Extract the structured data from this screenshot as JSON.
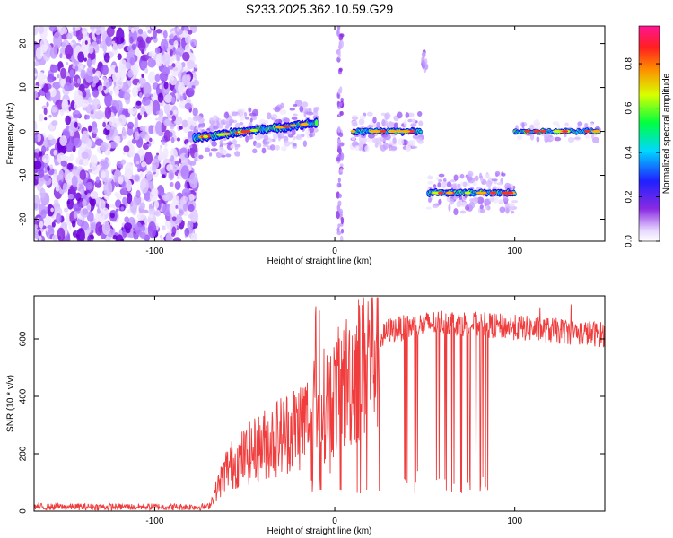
{
  "title": "S233.2025.362.10.59.G29",
  "chart_data": [
    {
      "type": "heatmap",
      "name": "spectrogram",
      "xlabel": "Height of straight line (km)",
      "ylabel": "Frequency (Hz)",
      "xlim": [
        -167,
        150
      ],
      "ylim": [
        -25,
        24
      ],
      "xticks": [
        -100,
        0,
        100
      ],
      "yticks": [
        -20,
        -10,
        0,
        10,
        20
      ],
      "colorbar": {
        "label": "Normalized spectral amplitude",
        "range": [
          0.0,
          0.97
        ],
        "ticks": [
          0.0,
          0.2,
          0.4,
          0.6,
          0.8
        ]
      },
      "features": [
        {
          "name": "noise-region",
          "x": [
            -167,
            -77
          ],
          "y": [
            -25,
            24
          ]
        },
        {
          "name": "tone-rising",
          "x": [
            -78,
            -10
          ],
          "y_start": -1.5,
          "y_end": 2
        },
        {
          "name": "tone-flat-1",
          "x": [
            10,
            48
          ],
          "y": 0
        },
        {
          "name": "tone-low",
          "x": [
            52,
            100
          ],
          "y": -14
        },
        {
          "name": "tone-flat-2",
          "x": [
            100,
            147
          ],
          "y": 0
        }
      ]
    },
    {
      "type": "line",
      "name": "snr",
      "xlabel": "Height of straight line (km)",
      "ylabel": "SNR (10 * v/v)",
      "xlim": [
        -167,
        150
      ],
      "ylim": [
        0,
        750
      ],
      "xticks": [
        -100,
        0,
        100
      ],
      "yticks": [
        0,
        200,
        400,
        600
      ],
      "color": "#f03c3c",
      "series_profile": [
        {
          "x": -167,
          "y": 15
        },
        {
          "x": -70,
          "y": 15
        },
        {
          "x": -60,
          "y": 150
        },
        {
          "x": -40,
          "y": 230
        },
        {
          "x": -20,
          "y": 300
        },
        {
          "x": 0,
          "y": 400
        },
        {
          "x": 20,
          "y": 560
        },
        {
          "x": 30,
          "y": 630
        },
        {
          "x": 60,
          "y": 660
        },
        {
          "x": 150,
          "y": 615
        }
      ]
    }
  ]
}
